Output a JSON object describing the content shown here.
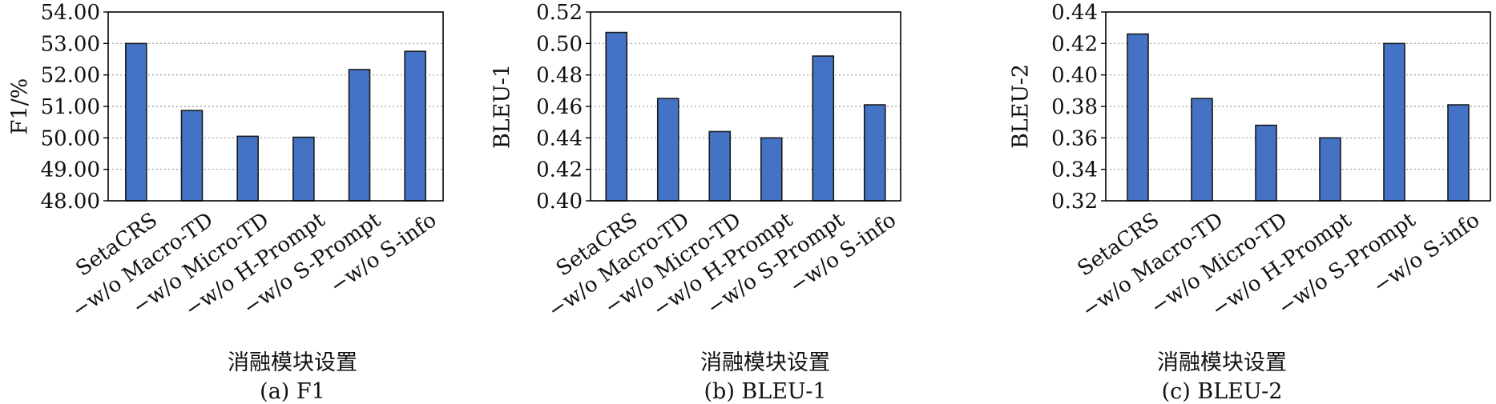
{
  "chart_data": [
    {
      "type": "bar",
      "caption": "(a) F1",
      "xlabel": "消融模块设置",
      "ylabel": "F1/%",
      "categories": [
        "SetaCRS",
        "−w/o Macro-TD",
        "−w/o Micro-TD",
        "−w/o H-Prompt",
        "−w/o S-Prompt",
        "−w/o S-info"
      ],
      "values": [
        53.0,
        50.87,
        50.05,
        50.02,
        52.17,
        52.75
      ],
      "ylim": [
        48.0,
        54.0
      ],
      "yticks": [
        "48.00",
        "49.00",
        "50.00",
        "51.00",
        "52.00",
        "53.00",
        "54.00"
      ],
      "grid": true,
      "bar_color": "#4472c4"
    },
    {
      "type": "bar",
      "caption": "(b) BLEU-1",
      "xlabel": "消融模块设置",
      "ylabel": "BLEU-1",
      "categories": [
        "SetaCRS",
        "−w/o Macro-TD",
        "−w/o Micro-TD",
        "−w/o H-Prompt",
        "−w/o S-Prompt",
        "−w/o S-info"
      ],
      "values": [
        0.507,
        0.465,
        0.444,
        0.44,
        0.492,
        0.461
      ],
      "ylim": [
        0.4,
        0.52
      ],
      "yticks": [
        "0.40",
        "0.42",
        "0.44",
        "0.46",
        "0.48",
        "0.50",
        "0.52"
      ],
      "grid": true,
      "bar_color": "#4472c4"
    },
    {
      "type": "bar",
      "caption": "(c) BLEU-2",
      "xlabel": "消融模块设置",
      "ylabel": "BLEU-2",
      "categories": [
        "SetaCRS",
        "−w/o Macro-TD",
        "−w/o Micro-TD",
        "−w/o H-Prompt",
        "−w/o S-Prompt",
        "−w/o S-info"
      ],
      "values": [
        0.426,
        0.385,
        0.368,
        0.36,
        0.42,
        0.381
      ],
      "ylim": [
        0.32,
        0.44
      ],
      "yticks": [
        "0.32",
        "0.34",
        "0.36",
        "0.38",
        "0.40",
        "0.42",
        "0.44"
      ],
      "grid": true,
      "bar_color": "#4472c4"
    }
  ]
}
